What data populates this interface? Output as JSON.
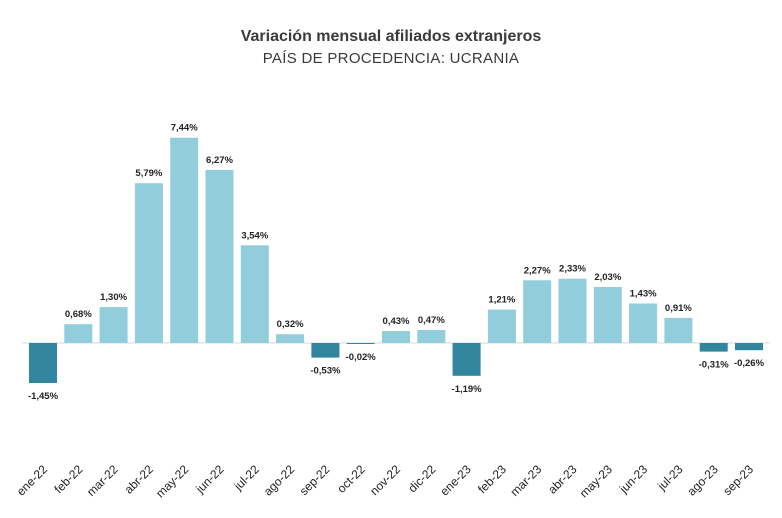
{
  "chart_data": {
    "type": "bar",
    "title": "Variación mensual afiliados extranjeros",
    "subtitle": "PAÍS DE PROCEDENCIA: UCRANIA",
    "categories": [
      "ene-22",
      "feb-22",
      "mar-22",
      "abr-22",
      "may-22",
      "jun-22",
      "jul-22",
      "ago-22",
      "sep-22",
      "oct-22",
      "nov-22",
      "dic-22",
      "ene-23",
      "feb-23",
      "mar-23",
      "abr-23",
      "may-23",
      "jun-23",
      "jul-23",
      "ago-23",
      "sep-23"
    ],
    "values": [
      -1.45,
      0.68,
      1.3,
      5.79,
      7.44,
      6.27,
      3.54,
      0.32,
      -0.53,
      -0.02,
      0.43,
      0.47,
      -1.19,
      1.21,
      2.27,
      2.33,
      2.03,
      1.43,
      0.91,
      -0.31,
      -0.26
    ],
    "value_labels": [
      "-1,45%",
      "0,68%",
      "1,30%",
      "5,79%",
      "7,44%",
      "6,27%",
      "3,54%",
      "0,32%",
      "-0,53%",
      "-0,02%",
      "0,43%",
      "0,47%",
      "-1,19%",
      "1,21%",
      "2,27%",
      "2,33%",
      "2,03%",
      "1,43%",
      "0,91%",
      "-0,31%",
      "-0,26%"
    ],
    "highlighted_categories": [
      "ene-22",
      "sep-22",
      "oct-22",
      "ene-23",
      "ago-23",
      "sep-23"
    ],
    "colors": {
      "default": "#92cddc",
      "highlight": "#31859c"
    },
    "xlabel": "",
    "ylabel": "",
    "ylim": [
      -2,
      8
    ],
    "grid": false,
    "legend": "none"
  }
}
